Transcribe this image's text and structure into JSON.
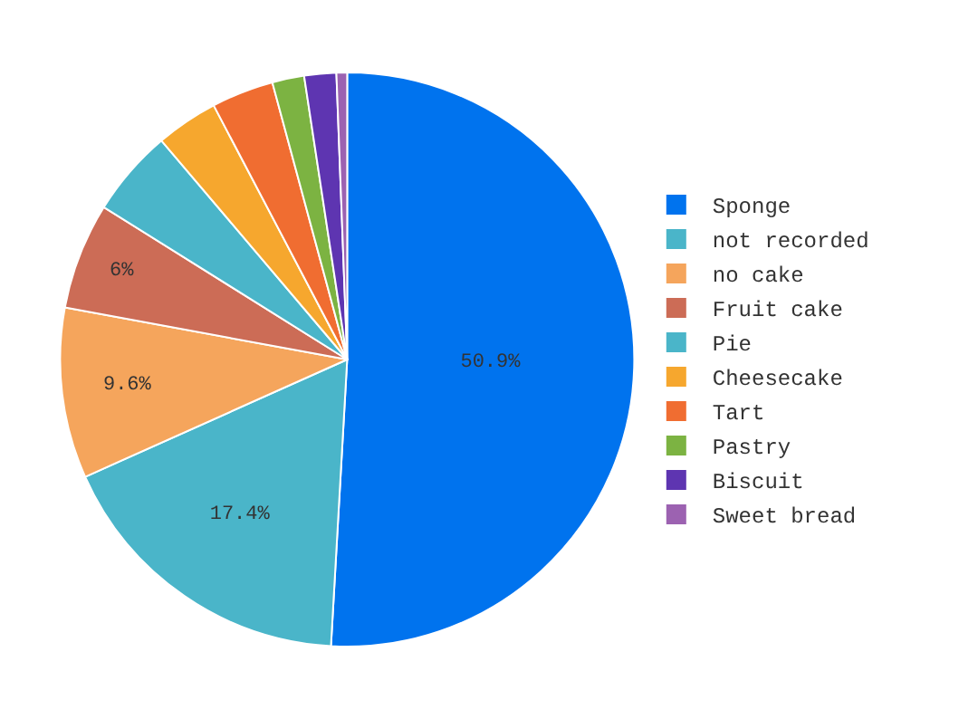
{
  "chart_data": {
    "type": "pie",
    "categories": [
      "Sponge",
      "not recorded",
      "no cake",
      "Fruit cake",
      "Pie",
      "Cheesecake",
      "Tart",
      "Pastry",
      "Biscuit",
      "Sweet bread"
    ],
    "values": [
      50.9,
      17.4,
      9.6,
      6,
      4.9,
      3.5,
      3.5,
      1.8,
      1.8,
      0.6
    ],
    "value_labels": [
      "50.9%",
      "17.4%",
      "9.6%",
      "6%",
      null,
      null,
      null,
      null,
      null,
      null
    ],
    "colors": [
      "#0073ee",
      "#4ab5c9",
      "#f5a55c",
      "#cc6c56",
      "#4ab5c9",
      "#f6a72e",
      "#f06d31",
      "#7cb342",
      "#5e35b1",
      "#9c62b1"
    ],
    "legend": "right"
  }
}
